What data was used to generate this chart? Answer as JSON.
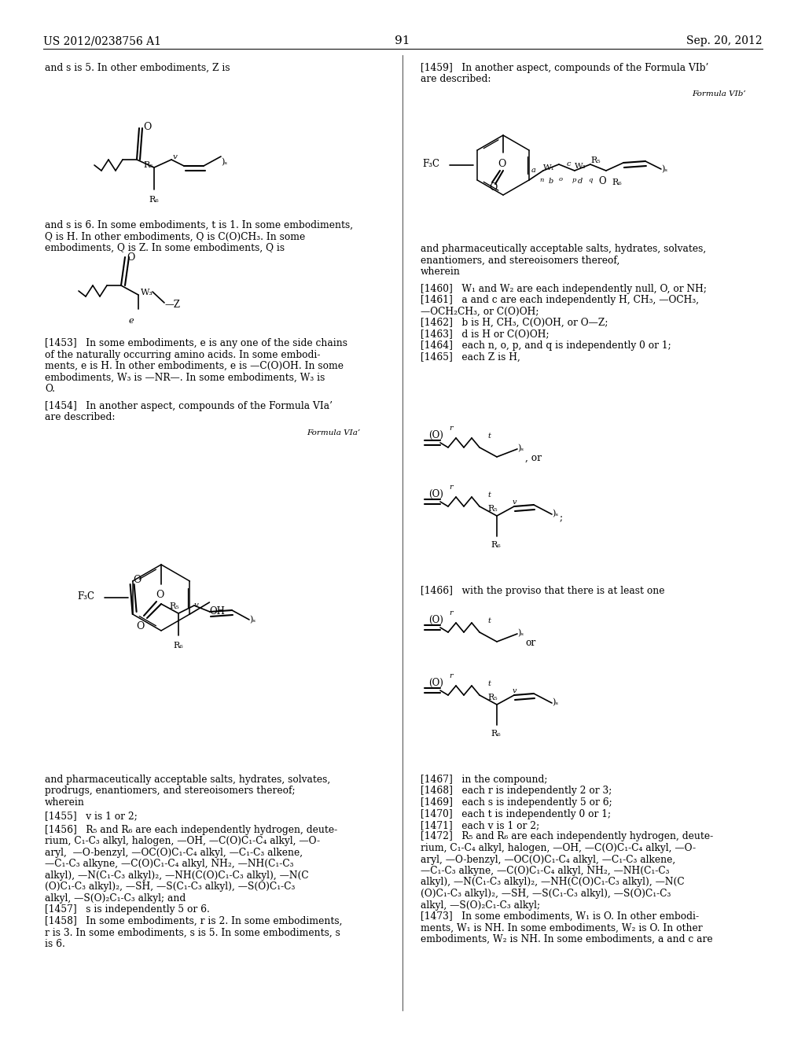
{
  "page_header_left": "US 2012/0238756 A1",
  "page_header_right": "Sep. 20, 2012",
  "page_number": "91",
  "bg_color": "#ffffff",
  "font_size_body": 8.5,
  "font_size_header": 9.5
}
